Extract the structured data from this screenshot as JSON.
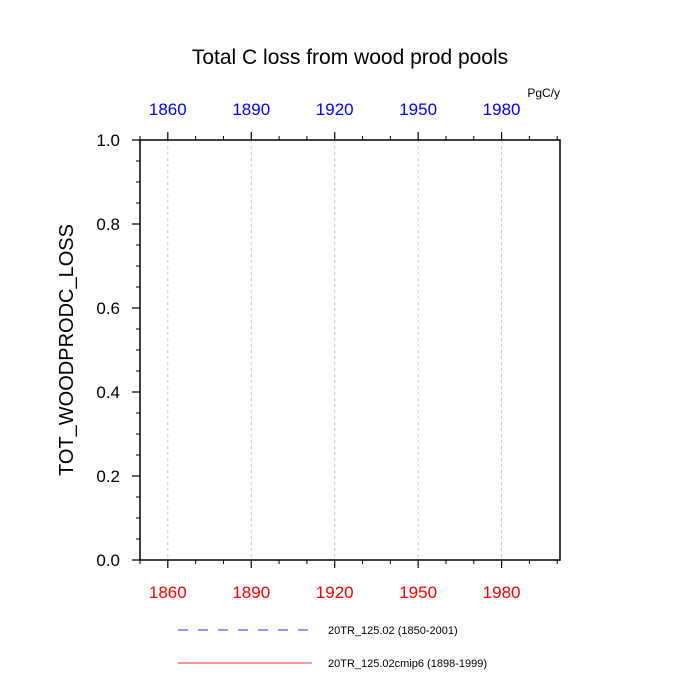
{
  "chart_data": {
    "type": "line",
    "title": "Total C loss from wood prod pools",
    "ylabel": "TOT_WOODPRODC_LOSS",
    "units": "PgC/y",
    "xlim": [
      1850,
      2001
    ],
    "ylim": [
      0,
      1
    ],
    "xticks": [
      1860,
      1890,
      1920,
      1950,
      1980
    ],
    "xtick_labels": [
      "1860",
      "1890",
      "1920",
      "1950",
      "1980"
    ],
    "yticks": [
      0,
      0.2,
      0.4,
      0.6,
      0.8,
      1.0
    ],
    "ytick_labels": [
      "0.0",
      "0.2",
      "0.4",
      "0.6",
      "0.8",
      "1.0"
    ],
    "grid": "vertical dashed",
    "bottom_axis_color": "#ff0000",
    "top_axis_color": "#0000ff",
    "series": [
      {
        "name": "20TR_125.02 (1850-2001)",
        "color": "#0000ff",
        "dash": "dashed",
        "axis": "top",
        "x": [
          1850,
          2001
        ],
        "y": [
          0,
          0
        ]
      },
      {
        "name": "20TR_125.02cmip6 (1898-1999)",
        "color": "#ff0000",
        "dash": "solid",
        "axis": "bottom",
        "x": [
          1898,
          1999
        ],
        "y": [
          0,
          0
        ]
      }
    ]
  }
}
